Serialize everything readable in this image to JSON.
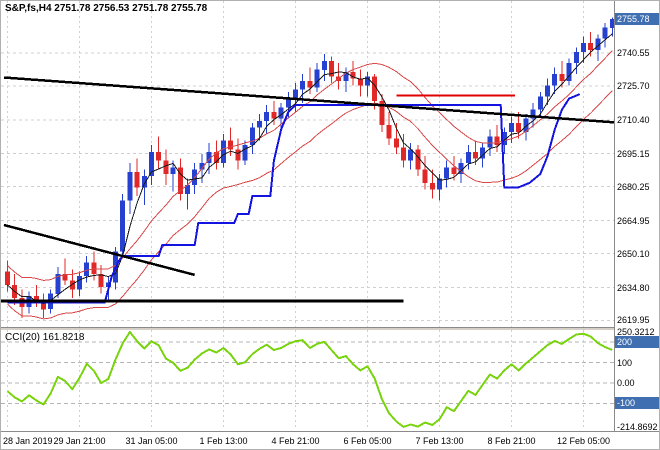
{
  "window": {
    "ohlc_line": "S&P,fs,H4 2751.78 2756.53 2751.78 2755.78"
  },
  "colors": {
    "bull": "#2640d0",
    "bear": "#e02828",
    "step_line": "#1414e0",
    "envelope": "#d84848",
    "ma": "#1a1a1a",
    "trendline": "#000000",
    "red_line": "#e00000",
    "cci_line": "#79d40f",
    "badge_bg": "#3f6fb0",
    "grid": "#d0d0d0",
    "level": "#b4b4b4"
  },
  "chart_data": {
    "type": "candlestick",
    "title": "S&P,fs,H4",
    "ohlc_display": {
      "open": "2751.78",
      "high": "2756.53",
      "low": "2751.78",
      "close": "2755.78"
    },
    "x_tick_step": 10,
    "time_labels": [
      "28 Jan 2019",
      "29 Jan 21:00",
      "31 Jan 05:00",
      "1 Feb 13:00",
      "4 Feb 21:00",
      "6 Feb 05:00",
      "7 Feb 13:00",
      "8 Feb 21:00",
      "12 Feb 05:00"
    ],
    "main": {
      "ylim": [
        2617,
        2764
      ],
      "price_axis_labels": [
        "2740.55",
        "2725.70",
        "2710.40",
        "2695.15",
        "2680.25",
        "2664.95",
        "2650.10",
        "2634.80",
        "2619.95"
      ],
      "current_price": 2755.78,
      "current_price_label": "2755.78",
      "candles": [
        [
          2642,
          2647,
          2633,
          2636
        ],
        [
          2636,
          2641,
          2627,
          2630
        ],
        [
          2630,
          2634,
          2621,
          2626
        ],
        [
          2626,
          2633,
          2623,
          2631
        ],
        [
          2631,
          2636,
          2626,
          2628
        ],
        [
          2628,
          2632,
          2621,
          2625
        ],
        [
          2625,
          2634,
          2623,
          2632
        ],
        [
          2632,
          2644,
          2630,
          2641
        ],
        [
          2641,
          2648,
          2636,
          2638
        ],
        [
          2638,
          2643,
          2630,
          2634
        ],
        [
          2634,
          2642,
          2631,
          2640
        ],
        [
          2640,
          2649,
          2637,
          2646
        ],
        [
          2646,
          2651,
          2638,
          2641
        ],
        [
          2641,
          2645,
          2632,
          2635
        ],
        [
          2635,
          2640,
          2628,
          2637
        ],
        [
          2637,
          2653,
          2634,
          2651
        ],
        [
          2651,
          2677,
          2648,
          2674
        ],
        [
          2674,
          2691,
          2668,
          2687
        ],
        [
          2687,
          2693,
          2676,
          2680
        ],
        [
          2680,
          2688,
          2672,
          2685
        ],
        [
          2685,
          2699,
          2681,
          2696
        ],
        [
          2696,
          2703,
          2688,
          2692
        ],
        [
          2692,
          2697,
          2681,
          2686
        ],
        [
          2686,
          2692,
          2678,
          2689
        ],
        [
          2689,
          2693,
          2674,
          2677
        ],
        [
          2677,
          2684,
          2670,
          2681
        ],
        [
          2681,
          2691,
          2677,
          2688
        ],
        [
          2688,
          2695,
          2682,
          2691
        ],
        [
          2691,
          2700,
          2686,
          2696
        ],
        [
          2696,
          2701,
          2688,
          2691
        ],
        [
          2691,
          2704,
          2689,
          2701
        ],
        [
          2701,
          2707,
          2694,
          2697
        ],
        [
          2697,
          2702,
          2688,
          2692
        ],
        [
          2692,
          2701,
          2690,
          2699
        ],
        [
          2699,
          2709,
          2695,
          2707
        ],
        [
          2707,
          2713,
          2701,
          2710
        ],
        [
          2710,
          2717,
          2704,
          2714
        ],
        [
          2714,
          2719,
          2708,
          2711
        ],
        [
          2711,
          2718,
          2706,
          2716
        ],
        [
          2716,
          2723,
          2711,
          2720
        ],
        [
          2720,
          2727,
          2714,
          2724
        ],
        [
          2724,
          2731,
          2718,
          2728
        ],
        [
          2728,
          2734,
          2722,
          2725
        ],
        [
          2725,
          2736,
          2723,
          2733
        ],
        [
          2733,
          2740,
          2728,
          2737
        ],
        [
          2737,
          2739,
          2727,
          2730
        ],
        [
          2730,
          2736,
          2724,
          2728
        ],
        [
          2728,
          2734,
          2723,
          2732
        ],
        [
          2732,
          2737,
          2726,
          2729
        ],
        [
          2729,
          2733,
          2721,
          2726
        ],
        [
          2726,
          2732,
          2721,
          2730
        ],
        [
          2730,
          2731,
          2715,
          2719
        ],
        [
          2719,
          2722,
          2705,
          2708
        ],
        [
          2708,
          2714,
          2699,
          2702
        ],
        [
          2702,
          2709,
          2695,
          2698
        ],
        [
          2698,
          2704,
          2689,
          2692
        ],
        [
          2692,
          2700,
          2688,
          2697
        ],
        [
          2697,
          2699,
          2685,
          2688
        ],
        [
          2688,
          2694,
          2679,
          2682
        ],
        [
          2682,
          2688,
          2675,
          2679
        ],
        [
          2679,
          2686,
          2674,
          2684
        ],
        [
          2684,
          2692,
          2680,
          2689
        ],
        [
          2689,
          2694,
          2683,
          2686
        ],
        [
          2686,
          2693,
          2682,
          2691
        ],
        [
          2691,
          2699,
          2688,
          2696
        ],
        [
          2696,
          2701,
          2690,
          2693
        ],
        [
          2693,
          2700,
          2689,
          2698
        ],
        [
          2698,
          2706,
          2694,
          2703
        ],
        [
          2703,
          2708,
          2696,
          2699
        ],
        [
          2699,
          2707,
          2695,
          2705
        ],
        [
          2705,
          2712,
          2700,
          2709
        ],
        [
          2709,
          2714,
          2702,
          2705
        ],
        [
          2705,
          2713,
          2701,
          2711
        ],
        [
          2711,
          2718,
          2707,
          2715
        ],
        [
          2715,
          2723,
          2712,
          2721
        ],
        [
          2721,
          2729,
          2717,
          2726
        ],
        [
          2726,
          2734,
          2722,
          2731
        ],
        [
          2731,
          2737,
          2725,
          2728
        ],
        [
          2728,
          2738,
          2726,
          2736
        ],
        [
          2736,
          2743,
          2731,
          2741
        ],
        [
          2741,
          2748,
          2736,
          2745
        ],
        [
          2745,
          2750,
          2739,
          2742
        ],
        [
          2742,
          2749,
          2737,
          2747
        ],
        [
          2747,
          2754,
          2743,
          2752
        ],
        [
          2751.78,
          2756.53,
          2748,
          2755.78
        ]
      ],
      "overlays": {
        "blue_step_line": [
          [
            0,
            2628
          ],
          [
            13.5,
            2628
          ],
          [
            14.5,
            2640
          ],
          [
            15.5,
            2647
          ],
          [
            16,
            2649
          ],
          [
            21,
            2649
          ],
          [
            21.5,
            2654
          ],
          [
            26,
            2654
          ],
          [
            26.5,
            2664
          ],
          [
            31.5,
            2664
          ],
          [
            32,
            2668
          ],
          [
            33.5,
            2668
          ],
          [
            34,
            2676
          ],
          [
            36.5,
            2676
          ],
          [
            37,
            2692
          ],
          [
            38,
            2706
          ],
          [
            39,
            2714
          ],
          [
            40,
            2717
          ],
          [
            68.5,
            2717
          ],
          [
            69,
            2680
          ],
          [
            71,
            2680
          ],
          [
            72.5,
            2682
          ],
          [
            74,
            2686
          ],
          [
            75,
            2694
          ],
          [
            76,
            2706
          ],
          [
            77,
            2715
          ],
          [
            78,
            2720
          ],
          [
            79.5,
            2722
          ]
        ],
        "trendlines": [
          [
            -0.5,
            2729.5,
            85.5,
            2709.0
          ],
          [
            -0.5,
            2663,
            26,
            2640.5
          ]
        ],
        "black_hline": {
          "price": 2628.8,
          "from": -0.5,
          "to": 55
        },
        "red_hline": {
          "price": 2721.5,
          "from": 54,
          "to": 70.5
        },
        "ma_fast_period": 4,
        "envelope_period": 14,
        "envelope_dev": 0.0033
      }
    },
    "cci": {
      "label": "CCI(20) 161.8218",
      "period": 20,
      "current": 161.8218,
      "ylim": [
        -225,
        260
      ],
      "levels": [
        200,
        100,
        0,
        -100
      ],
      "axis": [
        {
          "text": "250.3212",
          "v": 250.3212,
          "badge": false
        },
        {
          "text": "200",
          "v": 200,
          "badge": true
        },
        {
          "text": "100",
          "v": 100,
          "badge": false
        },
        {
          "text": "0.00",
          "v": 0,
          "badge": false
        },
        {
          "text": "-100",
          "v": -100,
          "badge": true
        },
        {
          "text": "-214.8692",
          "v": -214.8692,
          "badge": false
        }
      ],
      "values": [
        -40,
        -70,
        -90,
        -60,
        -85,
        -105,
        -50,
        30,
        10,
        -30,
        25,
        95,
        60,
        0,
        20,
        115,
        195,
        250.3,
        205,
        170,
        205,
        185,
        120,
        100,
        60,
        75,
        115,
        145,
        165,
        150,
        172,
        140,
        92,
        102,
        142,
        168,
        188,
        162,
        172,
        192,
        205,
        210,
        172,
        192,
        202,
        162,
        122,
        132,
        92,
        62,
        82,
        22,
        -78,
        -148,
        -188,
        -214.9,
        -203,
        -213,
        -193,
        -205,
        -178,
        -118,
        -138,
        -88,
        -38,
        -58,
        -8,
        42,
        22,
        62,
        92,
        62,
        96,
        126,
        156,
        186,
        206,
        192,
        216,
        238,
        242,
        228,
        196,
        176,
        161.8
      ]
    }
  }
}
